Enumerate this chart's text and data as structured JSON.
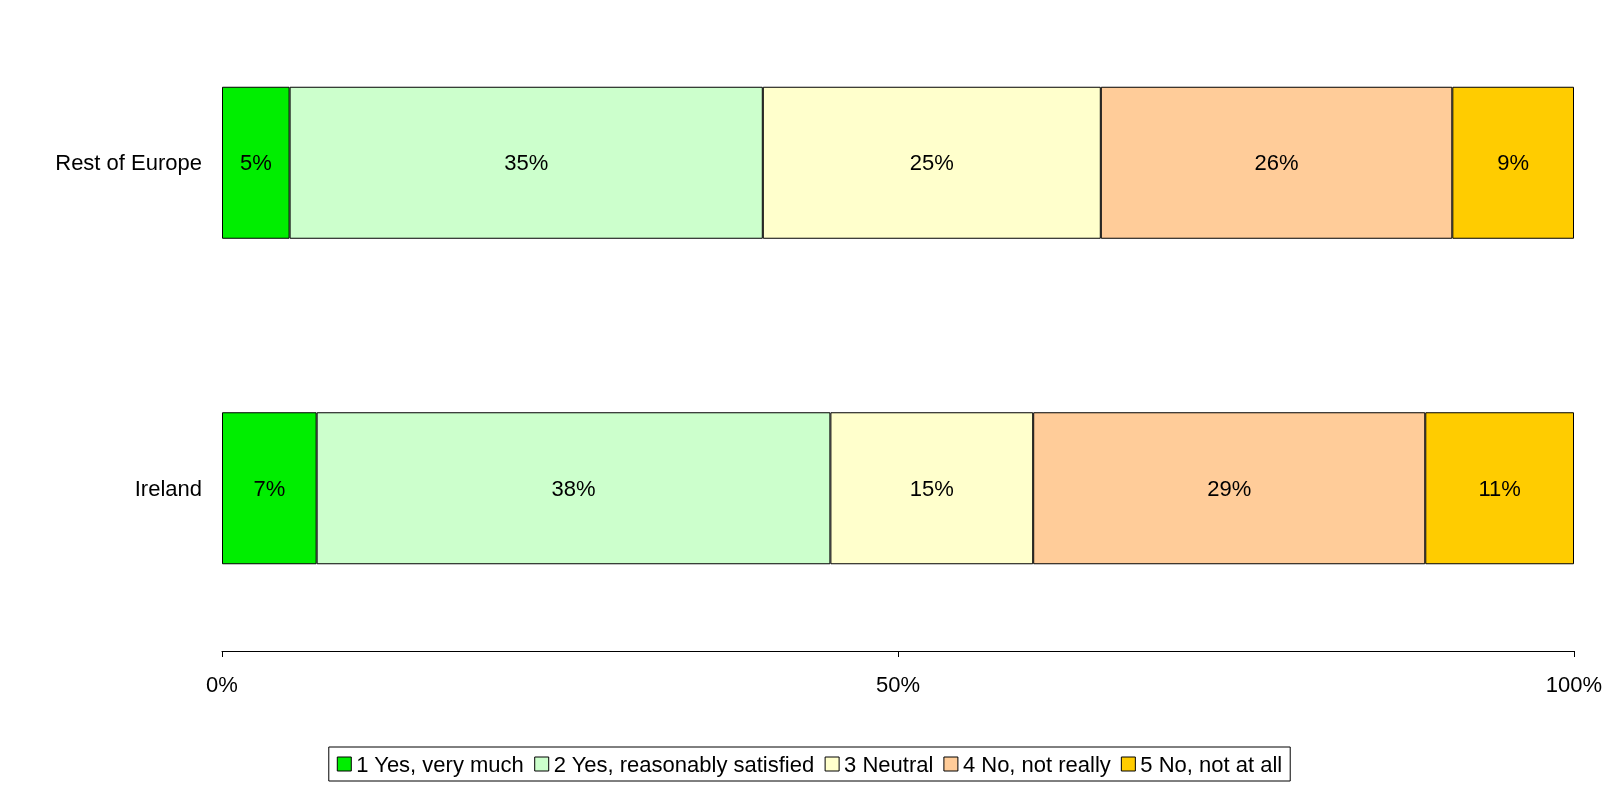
{
  "chart_data": {
    "type": "bar",
    "orientation": "horizontal",
    "stacked": true,
    "categories": [
      "Rest of Europe",
      "Ireland"
    ],
    "series": [
      {
        "name": "1 Yes, very much",
        "color": "#00ee00",
        "values": [
          5,
          7
        ],
        "value_labels": [
          "5%",
          "7%"
        ]
      },
      {
        "name": "2 Yes, reasonably satisfied",
        "color": "#ccffcc",
        "values": [
          35,
          38
        ],
        "value_labels": [
          "35%",
          "38%"
        ]
      },
      {
        "name": "3 Neutral",
        "color": "#ffffcc",
        "values": [
          25,
          15
        ],
        "value_labels": [
          "25%",
          "15%"
        ]
      },
      {
        "name": "4 No, not really",
        "color": "#ffcc99",
        "values": [
          26,
          29
        ],
        "value_labels": [
          "26%",
          "29%"
        ]
      },
      {
        "name": "5 No, not at all",
        "color": "#ffcc00",
        "values": [
          9,
          11
        ],
        "value_labels": [
          "9%",
          "11%"
        ]
      }
    ],
    "xlim": [
      0,
      100
    ],
    "xticks": [
      {
        "value": 0,
        "label": "0%"
      },
      {
        "value": 50,
        "label": "50%"
      },
      {
        "value": 100,
        "label": "100%"
      }
    ],
    "legend": "bottom"
  }
}
